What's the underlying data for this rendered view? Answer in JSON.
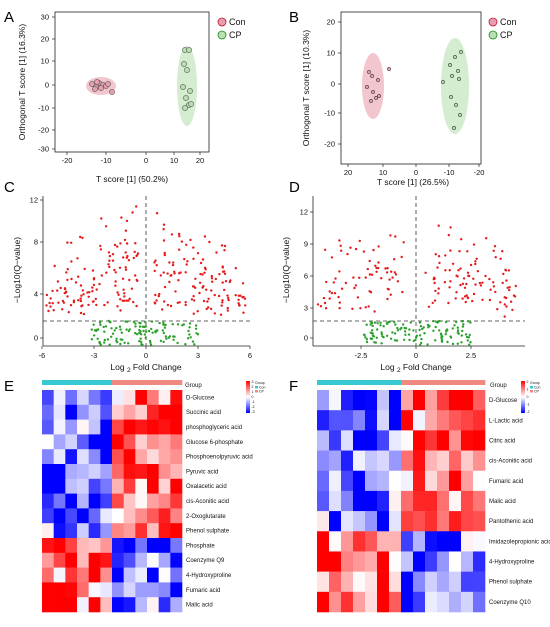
{
  "panels": {
    "A": {
      "label": "A",
      "type": "scatter",
      "xlabel": "T score [1] (50.2%)",
      "ylabel": "Orthogonal T score [1] (16.3%)",
      "xticks": [
        "-20",
        "-10",
        "0",
        "10",
        "20"
      ],
      "yticks": [
        "30",
        "20",
        "10",
        "0",
        "-10",
        "-20",
        "-30"
      ],
      "legend": [
        "Con",
        "CP"
      ]
    },
    "B": {
      "label": "B",
      "type": "scatter",
      "xlabel": "T score [1] (26.5%)",
      "ylabel": "Orthogonal T score [1] (10.3%)",
      "xticks": [
        "20",
        "10",
        "0",
        "-10",
        "-20"
      ],
      "yticks": [
        "20",
        "10",
        "0",
        "-10",
        "-20"
      ],
      "legend": [
        "Con",
        "CP"
      ]
    },
    "C": {
      "label": "C",
      "type": "volcano",
      "xlabel_pre": "Log ",
      "xlabel_sub": "2",
      "xlabel_post": " Fold Change",
      "ylabel": "−Log10(Q−value)",
      "xticks": [
        "-6",
        "-3",
        "0",
        "3",
        "6"
      ],
      "yticks": [
        "12",
        "8",
        "4",
        "0"
      ]
    },
    "D": {
      "label": "D",
      "type": "volcano",
      "xlabel_pre": "Log ",
      "xlabel_sub": "2",
      "xlabel_post": " Fold Change",
      "ylabel": "−Log10(Q−value)",
      "xticks": [
        "-2.5",
        "0",
        "2.5"
      ],
      "yticks": [
        "12",
        "9",
        "6",
        "3",
        "0"
      ]
    },
    "E": {
      "label": "E",
      "type": "heatmap",
      "group_label": "Group",
      "legend_title": "Group",
      "legend_groups": [
        "Con",
        "CP"
      ],
      "scale_labels": [
        "3",
        "2",
        "1",
        "0",
        "-1",
        "-2",
        "-3"
      ],
      "rows": [
        "D-Glucose",
        "Succinic acid",
        "phosphoglyceric acid",
        "Glucose 6-phosphate",
        "Phosphoenolpyruvic acid",
        "Pyruvic acid",
        "Oxalacetic acid",
        "cis-Aconitic acid",
        "2-Oxoglutarate",
        "Phenol sulphate",
        "Phosphate",
        "Coenzyme Q9",
        "4-Hydroxyproline",
        "Fumaric acid",
        "Malic acid"
      ]
    },
    "F": {
      "label": "F",
      "type": "heatmap",
      "group_label": "Group",
      "legend_title": "Group",
      "legend_groups": [
        "Con",
        "CP"
      ],
      "scale_labels": [
        "2",
        "1",
        "0",
        "-1",
        "-2"
      ],
      "rows": [
        "D-Glucose",
        "L-Lactic acid",
        "Citric acid",
        "cis-Aconitic acid",
        "Fumaric acid",
        "Malic acid",
        "Pantothenic acid",
        "Imidazolepropionic acid",
        "4-Hydroxyproline",
        "Phenol sulphate",
        "Coenzyme Q10"
      ]
    }
  },
  "colors": {
    "con": "#e8a0ae",
    "cp": "#b8e0b0",
    "up": "#e41a1c",
    "ns": "#2ca02c",
    "group_con": "#37c8d2",
    "group_cp": "#f08a80"
  }
}
